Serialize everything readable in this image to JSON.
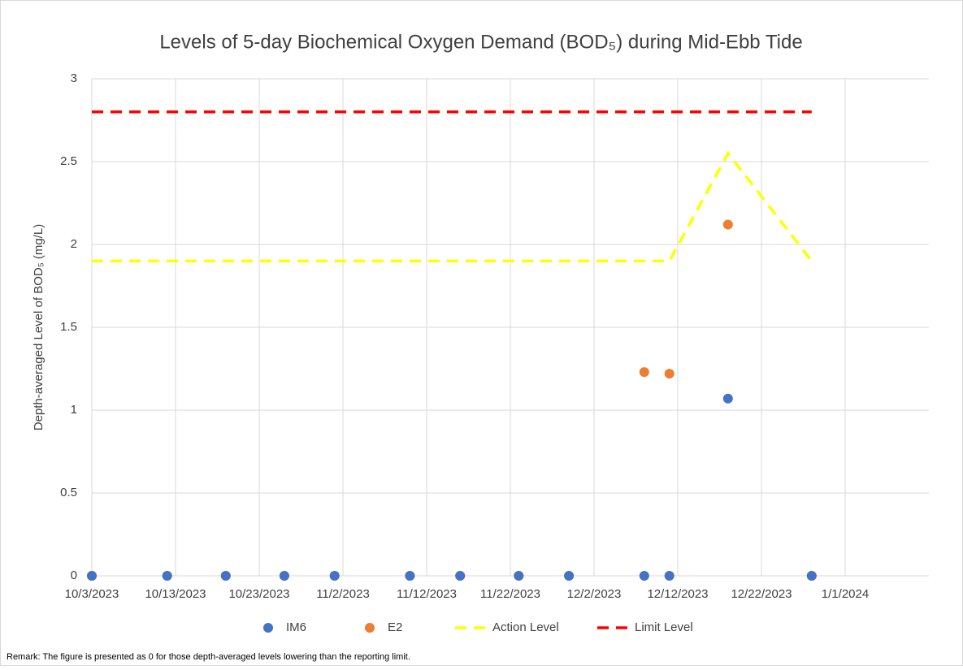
{
  "chart_data": {
    "type": "scatter",
    "title": "Levels of 5-day Biochemical Oxygen Demand (BOD₅) during Mid-Ebb Tide",
    "y_label": "Depth-averaged Level of  BOD₅ (mg/L)",
    "note": "Remark: The figure is presented as 0 for those depth-averaged levels lowering than the reporting limit.",
    "xlim": [
      "10/3/2023",
      "1/11/2024"
    ],
    "xticks": [
      "10/3/2023",
      "10/13/2023",
      "10/23/2023",
      "11/2/2023",
      "11/12/2023",
      "11/22/2023",
      "12/2/2023",
      "12/12/2023",
      "12/22/2023",
      "1/1/2024"
    ],
    "ylim": [
      0,
      3
    ],
    "yticks": [
      0,
      0.5,
      1,
      1.5,
      2,
      2.5,
      3
    ],
    "grid": true,
    "legend": "bottom",
    "series": [
      {
        "name": "IM6",
        "color": "#4472c4",
        "kind": "marker",
        "x": [
          "10/3/2023",
          "10/12/2023",
          "10/19/2023",
          "10/26/2023",
          "11/1/2023",
          "11/10/2023",
          "11/16/2023",
          "11/23/2023",
          "11/29/2023",
          "12/8/2023",
          "12/11/2023",
          "12/18/2023",
          "12/28/2023"
        ],
        "values": [
          0,
          0,
          0,
          0,
          0,
          0,
          0,
          0,
          0,
          0,
          0,
          1.07,
          0
        ]
      },
      {
        "name": "E2",
        "color": "#ed7d31",
        "kind": "marker",
        "x": [
          "10/3/2023",
          "10/12/2023",
          "10/19/2023",
          "10/26/2023",
          "11/1/2023",
          "11/10/2023",
          "11/16/2023",
          "11/23/2023",
          "11/29/2023",
          "12/8/2023",
          "12/11/2023",
          "12/18/2023",
          "12/28/2023"
        ],
        "values": [
          0,
          0,
          0,
          0,
          0,
          0,
          0,
          0,
          0,
          1.23,
          1.22,
          2.12,
          0
        ]
      },
      {
        "name": "Action Level",
        "color": "#ffff00",
        "kind": "dashed-line",
        "x": [
          "10/3/2023",
          "12/11/2023",
          "12/18/2023",
          "12/28/2023"
        ],
        "values": [
          1.9,
          1.9,
          2.55,
          1.9
        ]
      },
      {
        "name": "Limit Level",
        "color": "#ff0000",
        "kind": "dashed-line",
        "x": [
          "10/3/2023",
          "12/28/2023"
        ],
        "values": [
          2.8,
          2.8
        ]
      }
    ]
  }
}
